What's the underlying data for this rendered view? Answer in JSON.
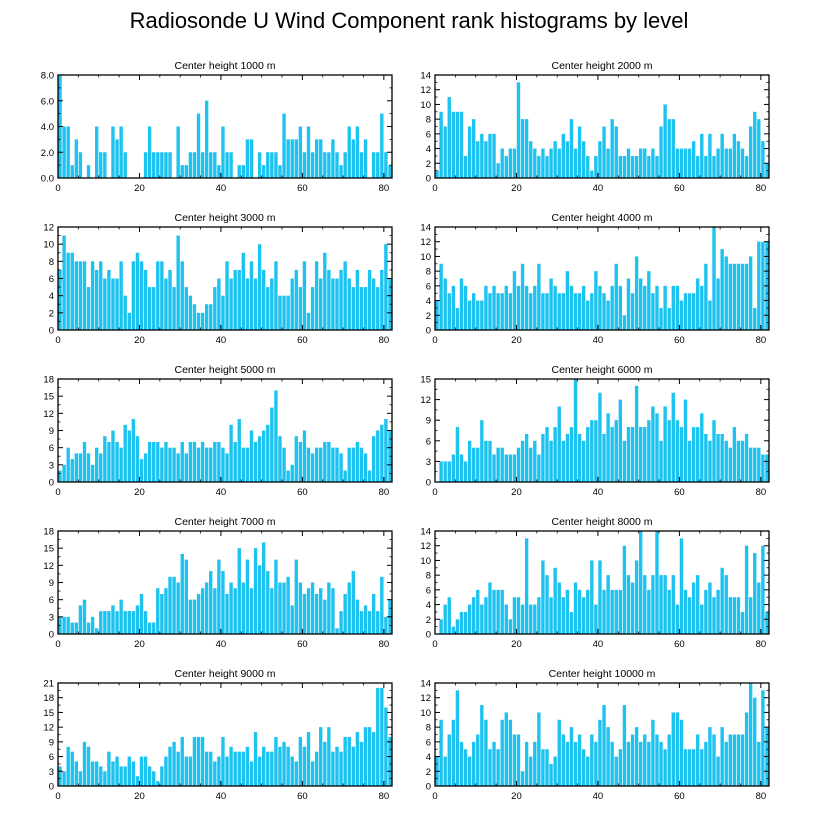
{
  "figure": {
    "title": "Radiosonde U Wind Component rank histograms by level",
    "bar_color": "#1cc2f0",
    "axis_color": "#000000"
  },
  "chart_data": [
    {
      "type": "bar",
      "title": "Center height 1000 m",
      "xlim": [
        0,
        82
      ],
      "ylim": [
        0,
        8
      ],
      "yticks": [
        0,
        2,
        4,
        6,
        8
      ],
      "ytick_labels": [
        "0.0",
        "2.0",
        "4.0",
        "6.0",
        "8.0"
      ],
      "xticks": [
        0,
        20,
        40,
        60,
        80
      ],
      "values": [
        8,
        4,
        4,
        1,
        3,
        2,
        0,
        1,
        0,
        4,
        2,
        2,
        0,
        4,
        3,
        4,
        2,
        0,
        0,
        0,
        0,
        2,
        4,
        2,
        2,
        2,
        2,
        2,
        0,
        4,
        1,
        1,
        2,
        2,
        5,
        2,
        6,
        2,
        2,
        1,
        4,
        2,
        2,
        0,
        1,
        1,
        3,
        3,
        0,
        2,
        1,
        2,
        2,
        2,
        1,
        5,
        3,
        3,
        3,
        4,
        2,
        4,
        2,
        3,
        3,
        2,
        2,
        3,
        2,
        1,
        2,
        4,
        3,
        4,
        2,
        3,
        0,
        2,
        2,
        5,
        2,
        1
      ]
    },
    {
      "type": "bar",
      "title": "Center height 2000 m",
      "xlim": [
        0,
        82
      ],
      "ylim": [
        0,
        14
      ],
      "yticks": [
        0,
        2,
        4,
        6,
        8,
        10,
        12,
        14
      ],
      "ytick_labels": [
        "0",
        "2",
        "4",
        "6",
        "8",
        "10",
        "12",
        "14"
      ],
      "xticks": [
        0,
        20,
        40,
        60,
        80
      ],
      "values": [
        1,
        9,
        7,
        11,
        9,
        9,
        9,
        3,
        7,
        8,
        5,
        6,
        5,
        6,
        6,
        2,
        4,
        3,
        4,
        4,
        13,
        8,
        8,
        5,
        4,
        3,
        4,
        3,
        4,
        5,
        4,
        6,
        5,
        8,
        4,
        7,
        5,
        3,
        1,
        3,
        5,
        7,
        4,
        8,
        7,
        3,
        3,
        4,
        3,
        3,
        4,
        4,
        3,
        4,
        3,
        7,
        10,
        8,
        8,
        4,
        4,
        4,
        4,
        5,
        3,
        6,
        3,
        6,
        3,
        4,
        6,
        4,
        4,
        6,
        5,
        4,
        3,
        7,
        9,
        8,
        5,
        2
      ]
    },
    {
      "type": "bar",
      "title": "Center height 3000 m",
      "xlim": [
        0,
        82
      ],
      "ylim": [
        0,
        12
      ],
      "yticks": [
        0,
        2,
        4,
        6,
        8,
        10,
        12
      ],
      "ytick_labels": [
        "0",
        "2",
        "4",
        "6",
        "8",
        "10",
        "12"
      ],
      "xticks": [
        0,
        20,
        40,
        60,
        80
      ],
      "values": [
        7,
        11,
        9,
        9,
        8,
        8,
        8,
        5,
        8,
        7,
        8,
        6,
        7,
        6,
        6,
        8,
        4,
        2,
        8,
        9,
        8,
        7,
        5,
        5,
        8,
        8,
        6,
        7,
        5,
        11,
        8,
        5,
        4,
        3,
        2,
        2,
        3,
        3,
        5,
        6,
        4,
        8,
        6,
        7,
        7,
        9,
        6,
        8,
        6,
        10,
        7,
        5,
        6,
        8,
        4,
        4,
        4,
        6,
        7,
        5,
        8,
        2,
        5,
        8,
        6,
        9,
        7,
        6,
        6,
        7,
        8,
        6,
        5,
        7,
        5,
        5,
        7,
        6,
        5,
        7,
        10,
        6
      ]
    },
    {
      "type": "bar",
      "title": "Center height 4000 m",
      "xlim": [
        0,
        82
      ],
      "ylim": [
        0,
        14
      ],
      "yticks": [
        0,
        2,
        4,
        6,
        8,
        10,
        12,
        14
      ],
      "ytick_labels": [
        "0",
        "2",
        "4",
        "6",
        "8",
        "10",
        "12",
        "14"
      ],
      "xticks": [
        0,
        20,
        40,
        60,
        80
      ],
      "values": [
        4,
        9,
        7,
        5,
        6,
        3,
        7,
        6,
        4,
        5,
        4,
        4,
        6,
        5,
        6,
        5,
        5,
        6,
        5,
        8,
        6,
        9,
        6,
        5,
        6,
        9,
        5,
        5,
        7,
        6,
        5,
        5,
        8,
        6,
        5,
        5,
        6,
        4,
        5,
        8,
        6,
        5,
        4,
        6,
        9,
        6,
        2,
        7,
        5,
        10,
        7,
        6,
        8,
        5,
        6,
        3,
        6,
        3,
        6,
        6,
        4,
        5,
        5,
        5,
        7,
        6,
        9,
        4,
        14,
        7,
        11,
        10,
        9,
        9,
        9,
        9,
        9,
        10,
        3,
        12,
        12,
        12
      ]
    },
    {
      "type": "bar",
      "title": "Center height 5000 m",
      "xlim": [
        0,
        82
      ],
      "ylim": [
        0,
        18
      ],
      "yticks": [
        0,
        3,
        6,
        9,
        12,
        15,
        18
      ],
      "ytick_labels": [
        "0",
        "3",
        "6",
        "9",
        "12",
        "15",
        "18"
      ],
      "xticks": [
        0,
        20,
        40,
        60,
        80
      ],
      "values": [
        2,
        3,
        6,
        4,
        5,
        5,
        7,
        5,
        3,
        6,
        5,
        8,
        7,
        9,
        7,
        6,
        10,
        9,
        11,
        8,
        4,
        5,
        7,
        7,
        7,
        6,
        7,
        6,
        6,
        5,
        7,
        5,
        7,
        7,
        6,
        7,
        6,
        6,
        7,
        7,
        6,
        5,
        10,
        7,
        11,
        6,
        6,
        9,
        7,
        8,
        9,
        10,
        13,
        16,
        8,
        6,
        2,
        3,
        8,
        7,
        9,
        6,
        5,
        6,
        6,
        7,
        7,
        6,
        6,
        5,
        2,
        6,
        6,
        7,
        6,
        5,
        2,
        8,
        9,
        10,
        11,
        9
      ]
    },
    {
      "type": "bar",
      "title": "Center height 6000 m",
      "xlim": [
        0,
        82
      ],
      "ylim": [
        0,
        15
      ],
      "yticks": [
        0,
        3,
        6,
        9,
        12,
        15
      ],
      "ytick_labels": [
        "0",
        "3",
        "6",
        "9",
        "12",
        "15"
      ],
      "xticks": [
        0,
        20,
        40,
        60,
        80
      ],
      "values": [
        0,
        3,
        3,
        3,
        4,
        8,
        4,
        3,
        6,
        5,
        5,
        9,
        6,
        6,
        4,
        5,
        5,
        4,
        4,
        4,
        5,
        6,
        7,
        5,
        6,
        4,
        7,
        8,
        6,
        8,
        11,
        6,
        7,
        8,
        15,
        7,
        6,
        8,
        9,
        9,
        13,
        7,
        10,
        8,
        9,
        12,
        6,
        8,
        8,
        14,
        8,
        8,
        9,
        11,
        10,
        6,
        11,
        9,
        13,
        9,
        8,
        12,
        6,
        8,
        8,
        10,
        7,
        6,
        9,
        7,
        7,
        6,
        5,
        8,
        6,
        6,
        7,
        5,
        5,
        5,
        4,
        4
      ]
    },
    {
      "type": "bar",
      "title": "Center height 7000 m",
      "xlim": [
        0,
        82
      ],
      "ylim": [
        0,
        18
      ],
      "yticks": [
        0,
        3,
        6,
        9,
        12,
        15,
        18
      ],
      "ytick_labels": [
        "0",
        "3",
        "6",
        "9",
        "12",
        "15",
        "18"
      ],
      "xticks": [
        0,
        20,
        40,
        60,
        80
      ],
      "values": [
        3,
        3,
        3,
        2,
        2,
        5,
        6,
        2,
        3,
        1,
        4,
        4,
        4,
        5,
        4,
        6,
        4,
        4,
        4,
        5,
        7,
        4,
        2,
        2,
        8,
        7,
        8,
        10,
        10,
        9,
        14,
        13,
        6,
        6,
        7,
        8,
        9,
        11,
        8,
        13,
        11,
        7,
        9,
        8,
        15,
        9,
        13,
        8,
        15,
        12,
        16,
        11,
        8,
        13,
        9,
        9,
        10,
        5,
        13,
        9,
        7,
        8,
        9,
        7,
        8,
        6,
        9,
        8,
        1,
        4,
        7,
        9,
        11,
        6,
        4,
        5,
        4,
        7,
        4,
        10,
        3,
        6
      ]
    },
    {
      "type": "bar",
      "title": "Center height 8000 m",
      "xlim": [
        0,
        82
      ],
      "ylim": [
        0,
        14
      ],
      "yticks": [
        0,
        2,
        4,
        6,
        8,
        10,
        12,
        14
      ],
      "ytick_labels": [
        "0",
        "2",
        "4",
        "6",
        "8",
        "10",
        "12",
        "14"
      ],
      "xticks": [
        0,
        20,
        40,
        60,
        80
      ],
      "values": [
        0,
        2,
        4,
        5,
        1,
        2,
        3,
        3,
        4,
        5,
        6,
        4,
        5,
        7,
        6,
        6,
        6,
        4,
        2,
        5,
        5,
        4,
        13,
        4,
        4,
        5,
        10,
        8,
        5,
        9,
        7,
        5,
        6,
        3,
        7,
        6,
        5,
        6,
        10,
        4,
        10,
        6,
        8,
        6,
        6,
        6,
        12,
        8,
        7,
        10,
        14,
        8,
        6,
        8,
        14,
        8,
        8,
        6,
        8,
        4,
        13,
        6,
        5,
        7,
        8,
        4,
        6,
        7,
        5,
        6,
        9,
        8,
        5,
        5,
        5,
        3,
        12,
        5,
        11,
        7,
        12,
        3
      ]
    },
    {
      "type": "bar",
      "title": "Center height 9000 m",
      "xlim": [
        0,
        82
      ],
      "ylim": [
        0,
        21
      ],
      "yticks": [
        0,
        3,
        6,
        9,
        12,
        15,
        18,
        21
      ],
      "ytick_labels": [
        "0",
        "3",
        "6",
        "9",
        "12",
        "15",
        "18",
        "21"
      ],
      "xticks": [
        0,
        20,
        40,
        60,
        80
      ],
      "values": [
        4,
        3,
        8,
        7,
        5,
        3,
        9,
        8,
        5,
        5,
        4,
        3,
        7,
        5,
        6,
        4,
        4,
        6,
        5,
        2,
        6,
        6,
        4,
        3,
        1,
        4,
        6,
        8,
        9,
        7,
        10,
        6,
        6,
        10,
        10,
        10,
        7,
        7,
        5,
        6,
        10,
        6,
        8,
        7,
        7,
        7,
        8,
        5,
        11,
        6,
        8,
        7,
        7,
        10,
        8,
        9,
        8,
        6,
        5,
        10,
        8,
        11,
        5,
        7,
        12,
        9,
        12,
        7,
        8,
        7,
        10,
        10,
        8,
        11,
        9,
        12,
        12,
        11,
        20,
        20,
        16,
        10
      ]
    },
    {
      "type": "bar",
      "title": "Center height 10000 m",
      "xlim": [
        0,
        82
      ],
      "ylim": [
        0,
        14
      ],
      "yticks": [
        0,
        2,
        4,
        6,
        8,
        10,
        12,
        14
      ],
      "ytick_labels": [
        "0",
        "2",
        "4",
        "6",
        "8",
        "10",
        "12",
        "14"
      ],
      "xticks": [
        0,
        20,
        40,
        60,
        80
      ],
      "values": [
        4,
        9,
        4,
        7,
        9,
        13,
        6,
        5,
        4,
        6,
        7,
        11,
        9,
        5,
        6,
        5,
        9,
        10,
        9,
        7,
        7,
        2,
        6,
        4,
        6,
        10,
        5,
        5,
        3,
        4,
        9,
        7,
        6,
        8,
        6,
        7,
        5,
        4,
        7,
        6,
        9,
        11,
        8,
        6,
        4,
        5,
        11,
        6,
        7,
        8,
        6,
        7,
        6,
        9,
        7,
        6,
        5,
        7,
        10,
        10,
        9,
        5,
        5,
        5,
        7,
        5,
        6,
        8,
        7,
        4,
        8,
        6,
        7,
        7,
        7,
        7,
        10,
        14,
        12,
        6,
        13,
        8
      ]
    }
  ]
}
